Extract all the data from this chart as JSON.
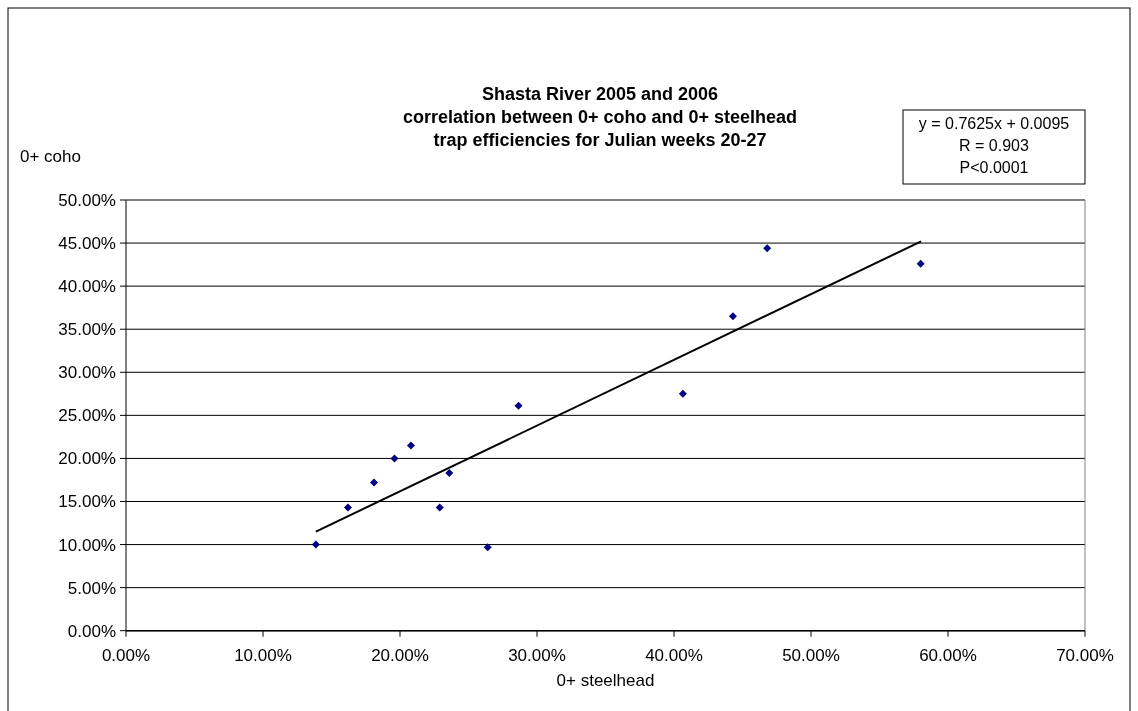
{
  "chart_data": {
    "type": "scatter",
    "title": "Shasta River 2005 and 2006\ncorrelation between 0+ coho and 0+ steelhead\ntrap efficiencies for Julian weeks 20-27",
    "xlabel": "0+ steelhead",
    "ylabel": "0+ coho",
    "annotations": [
      "y = 0.7625x + 0.0095",
      "R = 0.903",
      "P<0.0001"
    ],
    "series": [
      {
        "color": "#000080",
        "marker": "diamond",
        "x": [
          0.1386,
          0.162,
          0.181,
          0.196,
          0.208,
          0.229,
          0.236,
          0.264,
          0.2865,
          0.4065,
          0.443,
          0.468,
          0.58
        ],
        "values": [
          0.1,
          0.143,
          0.172,
          0.2,
          0.215,
          0.143,
          0.183,
          0.097,
          0.261,
          0.275,
          0.365,
          0.444,
          0.426
        ]
      },
      {
        "type": "line",
        "color": "#000000",
        "marker": "none",
        "x": [
          0.1386,
          0.5804
        ],
        "values": [
          0.115,
          0.452
        ]
      }
    ],
    "xlim": [
      0,
      0.7
    ],
    "ylim": [
      0,
      0.5
    ],
    "xticks": [
      {
        "value": 0,
        "label": "0.00%"
      },
      {
        "value": 0.1,
        "label": "10.00%"
      },
      {
        "value": 0.2,
        "label": "20.00%"
      },
      {
        "value": 0.3,
        "label": "30.00%"
      },
      {
        "value": 0.4,
        "label": "40.00%"
      },
      {
        "value": 0.5,
        "label": "50.00%"
      },
      {
        "value": 0.6,
        "label": "60.00%"
      },
      {
        "value": 0.7,
        "label": "70.00%"
      }
    ],
    "yticks": [
      {
        "value": 0,
        "label": "0.00%"
      },
      {
        "value": 0.05,
        "label": "5.00%"
      },
      {
        "value": 0.1,
        "label": "10.00%"
      },
      {
        "value": 0.15,
        "label": "15.00%"
      },
      {
        "value": 0.2,
        "label": "20.00%"
      },
      {
        "value": 0.25,
        "label": "25.00%"
      },
      {
        "value": 0.3,
        "label": "30.00%"
      },
      {
        "value": 0.35,
        "label": "35.00%"
      },
      {
        "value": 0.4,
        "label": "40.00%"
      },
      {
        "value": 0.45,
        "label": "45.00%"
      },
      {
        "value": 0.5,
        "label": "50.00%"
      }
    ],
    "grid": "y"
  }
}
